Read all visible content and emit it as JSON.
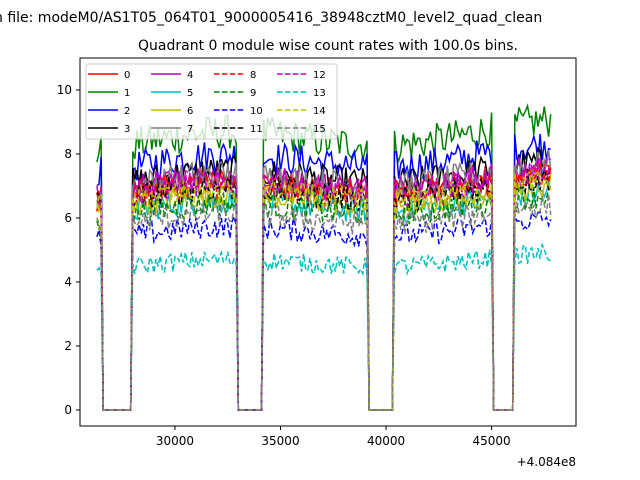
{
  "chart_data": {
    "type": "line",
    "suptitle": "n file: modeM0/AS1T05_064T01_9000005416_38948cztM0_level2_quad_clean",
    "title": "Quadrant 0 module wise count rates with 100.0s bins.",
    "xlabel": "",
    "ylabel": "",
    "x_offset_label": "+4.084e8",
    "xlim": [
      25500,
      49000
    ],
    "ylim": [
      -0.5,
      11.0
    ],
    "xticks": [
      30000,
      35000,
      40000,
      45000
    ],
    "xtick_labels": [
      "30000",
      "35000",
      "40000",
      "45000"
    ],
    "yticks": [
      0,
      2,
      4,
      6,
      8,
      10
    ],
    "ytick_labels": [
      "0",
      "2",
      "4",
      "6",
      "8",
      "10"
    ],
    "x_start": 26300,
    "x_end": 47800,
    "bin_seconds": 100,
    "active_intervals": [
      [
        26300,
        26500
      ],
      [
        28000,
        32900
      ],
      [
        34200,
        39100
      ],
      [
        40400,
        45000
      ],
      [
        46100,
        47800
      ]
    ],
    "legend_location": "upper left",
    "legend_columns": 4,
    "series": [
      {
        "name": "0",
        "color": "#ff0000",
        "dash": "solid",
        "level": 7.0
      },
      {
        "name": "1",
        "color": "#008000",
        "dash": "solid",
        "level": 8.5
      },
      {
        "name": "2",
        "color": "#0000ff",
        "dash": "solid",
        "level": 7.8
      },
      {
        "name": "3",
        "color": "#000000",
        "dash": "solid",
        "level": 7.3
      },
      {
        "name": "4",
        "color": "#bf00bf",
        "dash": "solid",
        "level": 7.1
      },
      {
        "name": "5",
        "color": "#00bfbf",
        "dash": "solid",
        "level": 6.4
      },
      {
        "name": "6",
        "color": "#bfbf00",
        "dash": "solid",
        "level": 6.6
      },
      {
        "name": "7",
        "color": "#808080",
        "dash": "solid",
        "level": 7.2
      },
      {
        "name": "8",
        "color": "#ff0000",
        "dash": "dashed",
        "level": 6.9
      },
      {
        "name": "9",
        "color": "#008000",
        "dash": "dashed",
        "level": 6.3
      },
      {
        "name": "10",
        "color": "#0000ff",
        "dash": "dashed",
        "level": 5.6
      },
      {
        "name": "11",
        "color": "#000000",
        "dash": "dashed",
        "level": 6.8
      },
      {
        "name": "12",
        "color": "#bf00bf",
        "dash": "dashed",
        "level": 7.0
      },
      {
        "name": "13",
        "color": "#00bfbf",
        "dash": "dashed",
        "level": 4.6
      },
      {
        "name": "14",
        "color": "#bfbf00",
        "dash": "dashed",
        "level": 6.7
      },
      {
        "name": "15",
        "color": "#808080",
        "dash": "dashed",
        "level": 6.0
      }
    ]
  }
}
